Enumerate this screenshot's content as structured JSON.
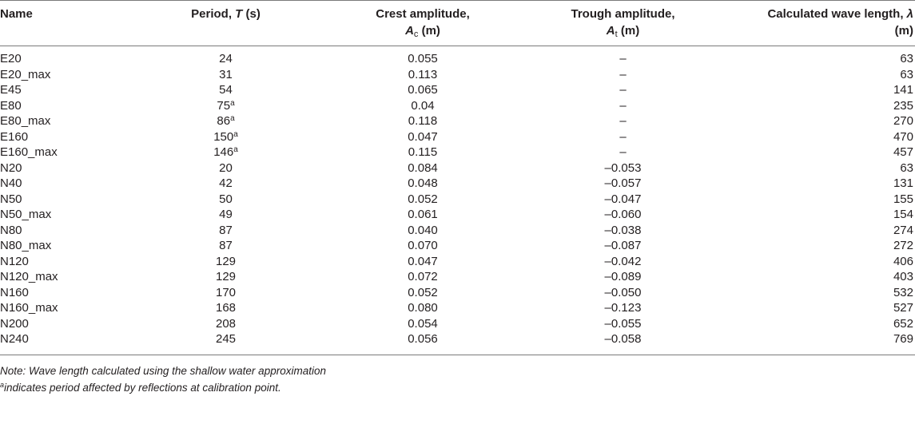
{
  "table": {
    "headers": {
      "name": "Name",
      "period_text": "Period, ",
      "period_sym": "T",
      "period_unit": " (s)",
      "crest_line1": "Crest amplitude,",
      "crest_sym": "A",
      "crest_sub": "c",
      "crest_unit": " (m)",
      "trough_line1": "Trough amplitude,",
      "trough_sym": "A",
      "trough_sub": "t",
      "trough_unit": " (m)",
      "wl_line1": "Calculated wave length, ",
      "wl_sym": "λ",
      "wl_unit": "(m)"
    },
    "rows": [
      {
        "name": "E20",
        "period": "24",
        "fn": "",
        "crest": "0.055",
        "trough": "–",
        "wl": "63"
      },
      {
        "name": "E20_max",
        "period": "31",
        "fn": "",
        "crest": "0.113",
        "trough": "–",
        "wl": "63"
      },
      {
        "name": "E45",
        "period": "54",
        "fn": "",
        "crest": "0.065",
        "trough": "–",
        "wl": "141"
      },
      {
        "name": "E80",
        "period": "75",
        "fn": "a",
        "crest": "0.04",
        "trough": "–",
        "wl": "235"
      },
      {
        "name": "E80_max",
        "period": "86",
        "fn": "a",
        "crest": "0.118",
        "trough": "–",
        "wl": "270"
      },
      {
        "name": "E160",
        "period": "150",
        "fn": "a",
        "crest": "0.047",
        "trough": "–",
        "wl": "470"
      },
      {
        "name": "E160_max",
        "period": "146",
        "fn": "a",
        "crest": "0.115",
        "trough": "–",
        "wl": "457"
      },
      {
        "name": "N20",
        "period": "20",
        "fn": "",
        "crest": "0.084",
        "trough": "–0.053",
        "wl": "63"
      },
      {
        "name": "N40",
        "period": "42",
        "fn": "",
        "crest": "0.048",
        "trough": "–0.057",
        "wl": "131"
      },
      {
        "name": "N50",
        "period": "50",
        "fn": "",
        "crest": "0.052",
        "trough": "–0.047",
        "wl": "155"
      },
      {
        "name": "N50_max",
        "period": "49",
        "fn": "",
        "crest": "0.061",
        "trough": "–0.060",
        "wl": "154"
      },
      {
        "name": "N80",
        "period": "87",
        "fn": "",
        "crest": "0.040",
        "trough": "–0.038",
        "wl": "274"
      },
      {
        "name": "N80_max",
        "period": "87",
        "fn": "",
        "crest": "0.070",
        "trough": "–0.087",
        "wl": "272"
      },
      {
        "name": "N120",
        "period": "129",
        "fn": "",
        "crest": "0.047",
        "trough": "–0.042",
        "wl": "406"
      },
      {
        "name": "N120_max",
        "period": "129",
        "fn": "",
        "crest": "0.072",
        "trough": "–0.089",
        "wl": "403"
      },
      {
        "name": "N160",
        "period": "170",
        "fn": "",
        "crest": "0.052",
        "trough": "–0.050",
        "wl": "532"
      },
      {
        "name": "N160_max",
        "period": "168",
        "fn": "",
        "crest": "0.080",
        "trough": "–0.123",
        "wl": "527"
      },
      {
        "name": "N200",
        "period": "208",
        "fn": "",
        "crest": "0.054",
        "trough": "–0.055",
        "wl": "652"
      },
      {
        "name": "N240",
        "period": "245",
        "fn": "",
        "crest": "0.056",
        "trough": "–0.058",
        "wl": "769"
      }
    ]
  },
  "notes": {
    "line1": "Note: Wave length calculated using the shallow water approximation",
    "line2_sup": "a",
    "line2_text": "indicates period affected by reflections at calibration point."
  }
}
